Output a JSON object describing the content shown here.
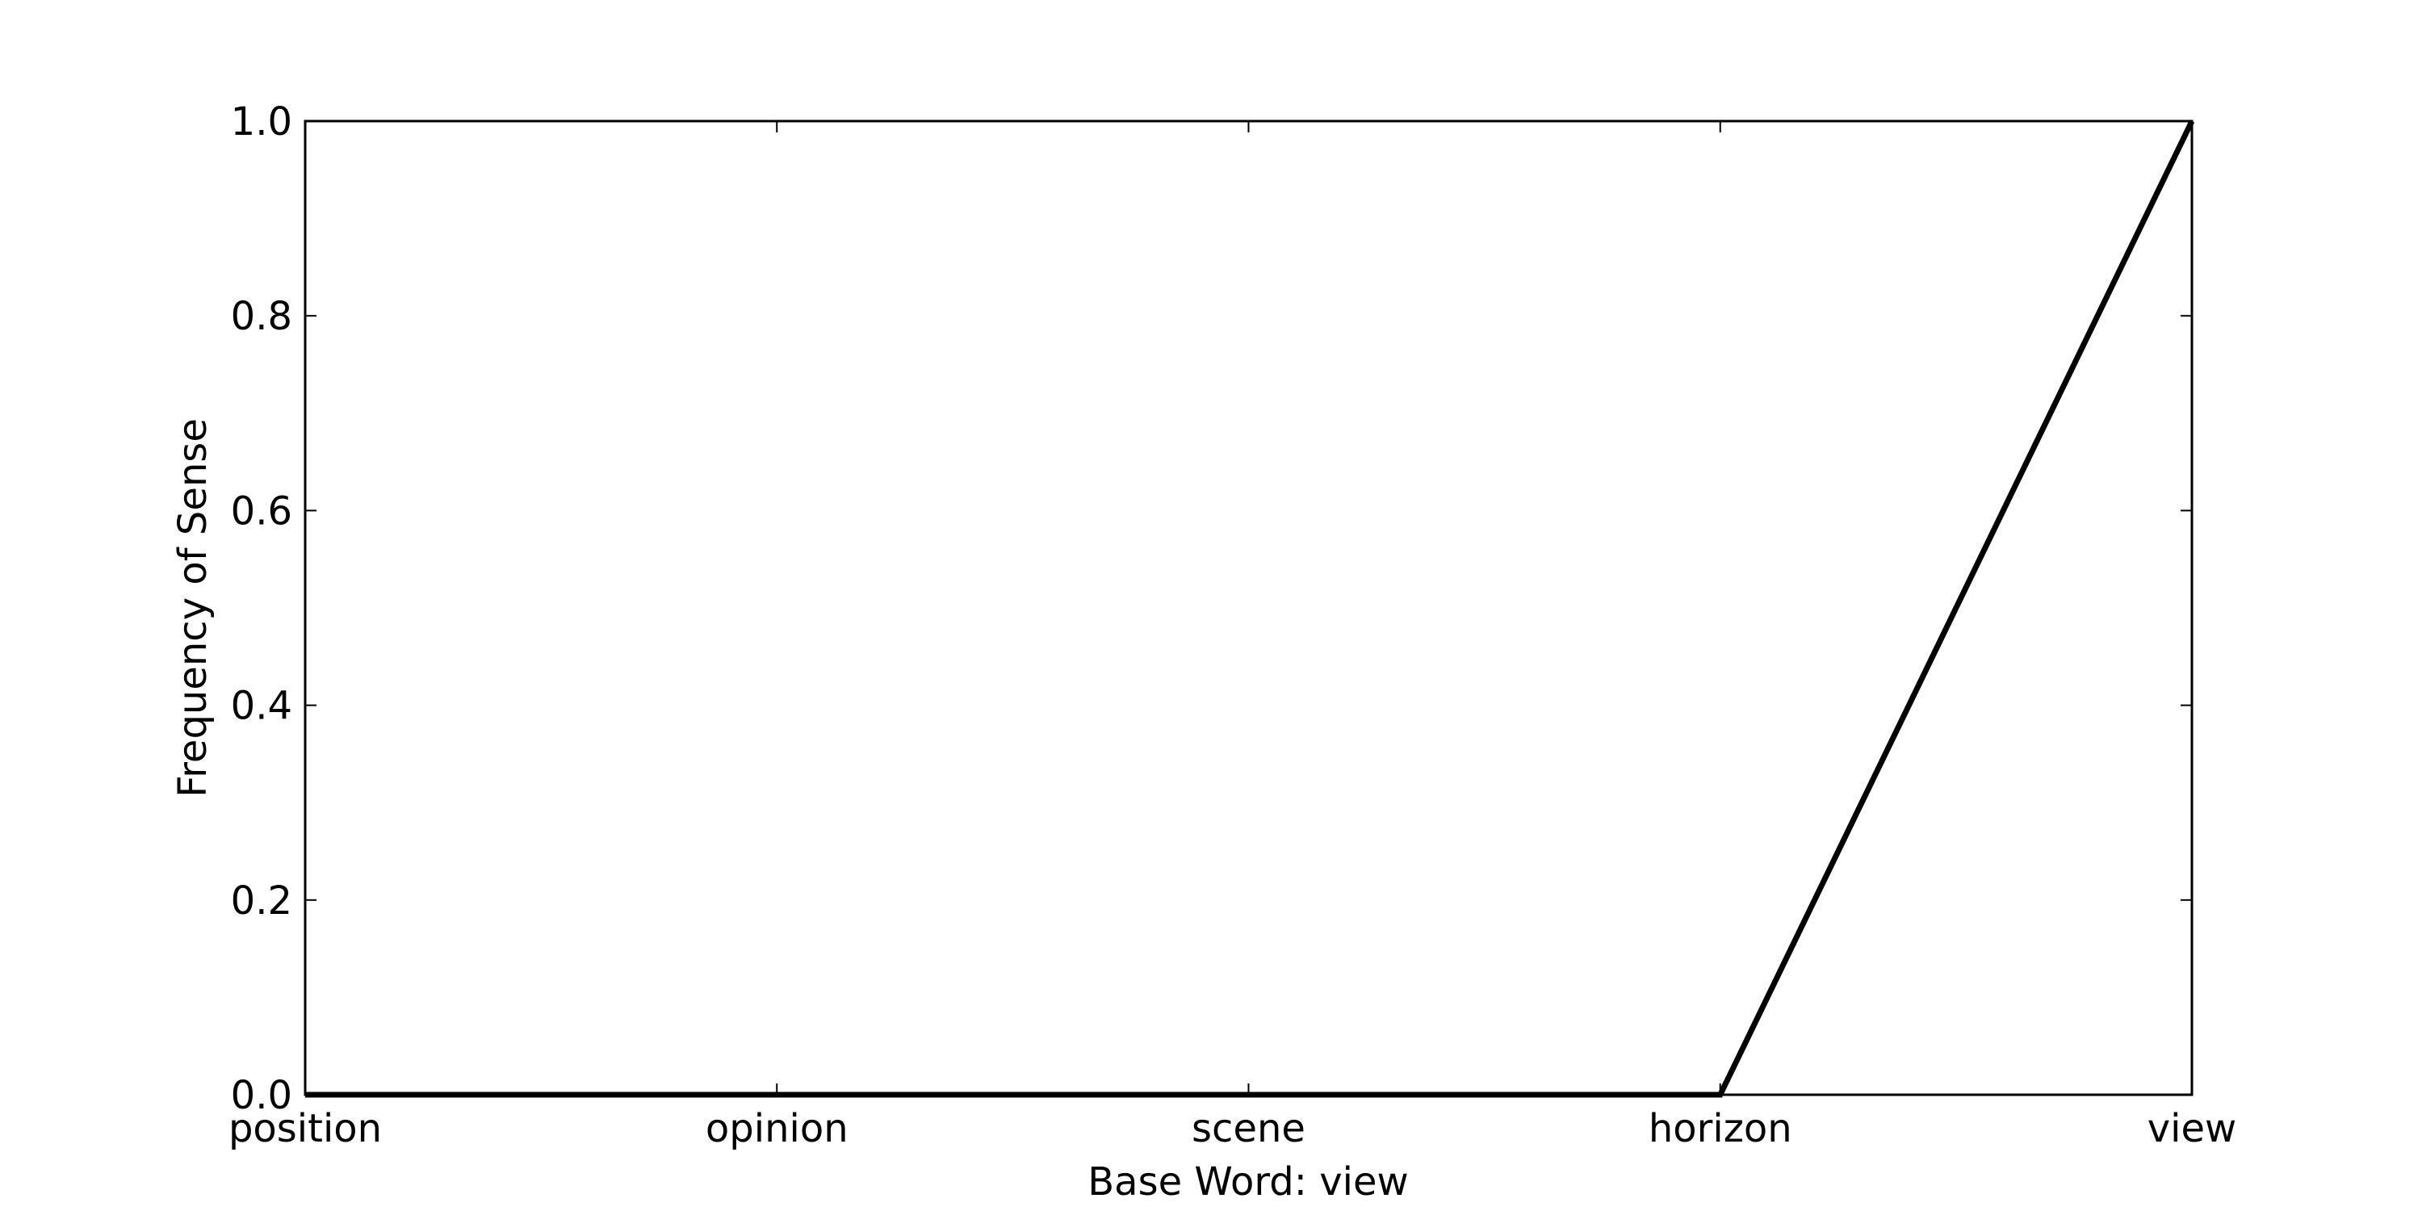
{
  "chart_data": {
    "type": "line",
    "title": "",
    "xlabel": "Base Word: view",
    "ylabel": "Frequency of Sense",
    "categories": [
      "position",
      "opinion",
      "scene",
      "horizon",
      "view"
    ],
    "series": [
      {
        "values": [
          0,
          0,
          0,
          0,
          1.0
        ]
      }
    ],
    "ylim": [
      0,
      1.0
    ],
    "yticks": [
      "0.0",
      "0.2",
      "0.4",
      "0.6",
      "0.8",
      "1.0"
    ],
    "grid": false,
    "legend": "none",
    "colors": {
      "line": "#000000",
      "frame": "#000000",
      "background": "#ffffff"
    }
  }
}
